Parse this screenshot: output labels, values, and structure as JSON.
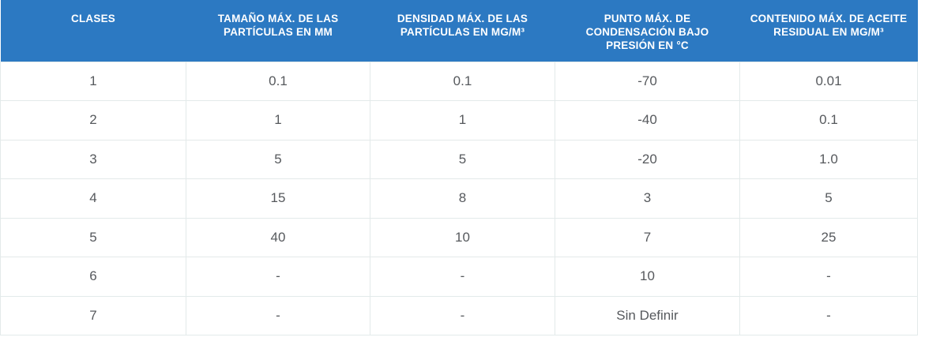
{
  "chart_data": {
    "type": "table",
    "columns": [
      "CLASES",
      "TAMAÑO MÁX. DE LAS\nPARTÍCULAS EN MM",
      "DENSIDAD MÁX. DE LAS\nPARTÍCULAS EN MG/M³",
      "PUNTO MÁX. DE\nCONDENSACIÓN BAJO\nPRESIÓN EN °C",
      "CONTENIDO MÁX. DE ACEITE\nRESIDUAL EN MG/M³"
    ],
    "rows": [
      [
        "1",
        "0.1",
        "0.1",
        "-70",
        "0.01"
      ],
      [
        "2",
        "1",
        "1",
        "-40",
        "0.1"
      ],
      [
        "3",
        "5",
        "5",
        "-20",
        "1.0"
      ],
      [
        "4",
        "15",
        "8",
        "3",
        "5"
      ],
      [
        "5",
        "40",
        "10",
        "7",
        "25"
      ],
      [
        "6",
        "-",
        "-",
        "10",
        "-"
      ],
      [
        "7",
        "-",
        "-",
        "Sin Definir",
        "-"
      ]
    ]
  },
  "colors": {
    "header_bg": "#2c79c2",
    "header_text": "#ffffff",
    "body_text": "#56595d",
    "row_bg": "#ffffff",
    "border": "#e3eaea"
  }
}
